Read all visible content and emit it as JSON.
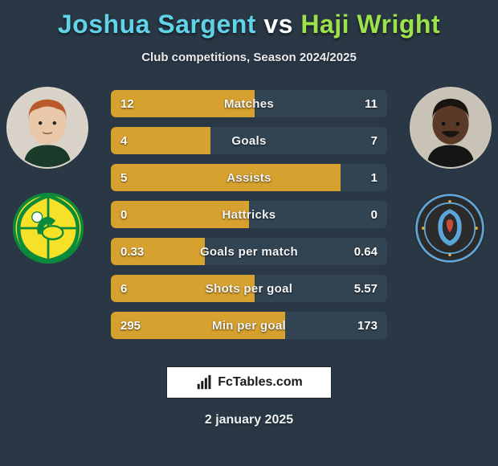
{
  "background_color": "#2a3845",
  "title": {
    "player1": "Joshua Sargent",
    "vs": "vs",
    "player2": "Haji Wright",
    "p1_color": "#61d3e8",
    "vs_color": "#ffffff",
    "p2_color": "#9be24b",
    "fontsize": 32
  },
  "subtitle": "Club competitions, Season 2024/2025",
  "bars": {
    "track_color": "#1e2a34",
    "left_fill_color": "#d6a12e",
    "right_fill_color": "#324452",
    "label_color": "#f2f4f6",
    "value_color": "#ffffff",
    "height": 34,
    "gap": 12,
    "label_fontsize": 15,
    "value_fontsize": 15,
    "rows": [
      {
        "label": "Matches",
        "left_val": "12",
        "right_val": "11",
        "left_pct": 52,
        "right_pct": 48
      },
      {
        "label": "Goals",
        "left_val": "4",
        "right_val": "7",
        "left_pct": 36,
        "right_pct": 64
      },
      {
        "label": "Assists",
        "left_val": "5",
        "right_val": "1",
        "left_pct": 83,
        "right_pct": 17
      },
      {
        "label": "Hattricks",
        "left_val": "0",
        "right_val": "0",
        "left_pct": 50,
        "right_pct": 50
      },
      {
        "label": "Goals per match",
        "left_val": "0.33",
        "right_val": "0.64",
        "left_pct": 34,
        "right_pct": 66
      },
      {
        "label": "Shots per goal",
        "left_val": "6",
        "right_val": "5.57",
        "left_pct": 52,
        "right_pct": 48
      },
      {
        "label": "Min per goal",
        "left_val": "295",
        "right_val": "173",
        "left_pct": 63,
        "right_pct": 37
      }
    ]
  },
  "club_left": {
    "primary": "#f7e028",
    "secondary": "#0a8a3a"
  },
  "club_right": {
    "primary": "#5aa6d8",
    "secondary": "#2b2b2b",
    "accent": "#c84b3a"
  },
  "footer_brand": "FcTables.com",
  "date": "2 january 2025"
}
